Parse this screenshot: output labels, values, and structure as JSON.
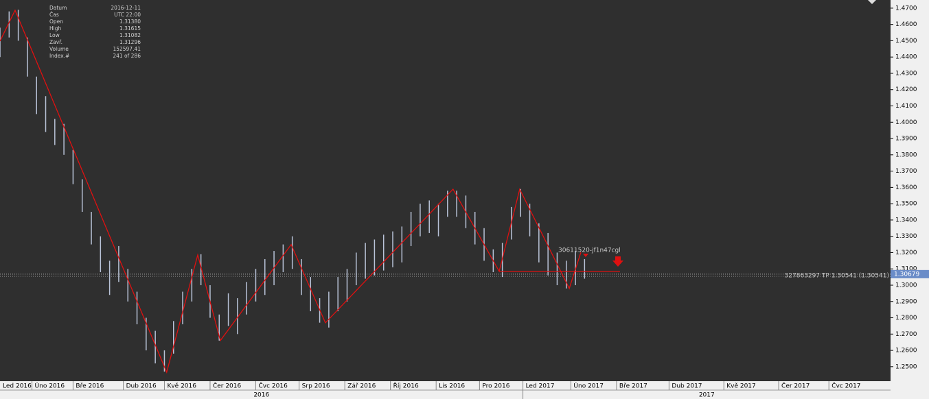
{
  "chart_data": {
    "type": "ohlc",
    "info": [
      [
        "Datum",
        "2016-12-11"
      ],
      [
        "Čas",
        "UTC 22:00"
      ],
      [
        "Open",
        "1.31380"
      ],
      [
        "High",
        "1.31615"
      ],
      [
        "Low",
        "1.31082"
      ],
      [
        "Zavř.",
        "1.31296"
      ],
      [
        "Volume",
        "152597.41"
      ],
      [
        "Index.#",
        "241 of 286"
      ]
    ],
    "xlim": [
      0,
      390
    ],
    "ylim": [
      1.2411,
      1.475
    ],
    "yticks": [
      {
        "value": 1.47,
        "label": "1.4700"
      },
      {
        "value": 1.46,
        "label": "1.4600"
      },
      {
        "value": 1.45,
        "label": "1.4500"
      },
      {
        "value": 1.44,
        "label": "1.4400"
      },
      {
        "value": 1.43,
        "label": "1.4300"
      },
      {
        "value": 1.42,
        "label": "1.4200"
      },
      {
        "value": 1.41,
        "label": "1.4100"
      },
      {
        "value": 1.4,
        "label": "1.4000"
      },
      {
        "value": 1.39,
        "label": "1.3900"
      },
      {
        "value": 1.38,
        "label": "1.3800"
      },
      {
        "value": 1.37,
        "label": "1.3700"
      },
      {
        "value": 1.36,
        "label": "1.3600"
      },
      {
        "value": 1.35,
        "label": "1.3500"
      },
      {
        "value": 1.34,
        "label": "1.3400"
      },
      {
        "value": 1.33,
        "label": "1.3300"
      },
      {
        "value": 1.32,
        "label": "1.3200"
      },
      {
        "value": 1.31,
        "label": "1.3100"
      },
      {
        "value": 1.3,
        "label": "1.3000"
      },
      {
        "value": 1.29,
        "label": "1.2900"
      },
      {
        "value": 1.28,
        "label": "1.2800"
      },
      {
        "value": 1.27,
        "label": "1.2700"
      },
      {
        "value": 1.26,
        "label": "1.2600"
      },
      {
        "value": 1.25,
        "label": "1.2500"
      }
    ],
    "xticks": [
      {
        "value": 0,
        "label": "Led 2016"
      },
      {
        "value": 14,
        "label": "Úno 2016"
      },
      {
        "value": 32,
        "label": "Bře 2016"
      },
      {
        "value": 54,
        "label": "Dub 2016"
      },
      {
        "value": 72,
        "label": "Kvě 2016"
      },
      {
        "value": 92,
        "label": "Čer 2016"
      },
      {
        "value": 112,
        "label": "Čvc 2016"
      },
      {
        "value": 131,
        "label": "Srp 2016"
      },
      {
        "value": 151,
        "label": "Zář 2016"
      },
      {
        "value": 171,
        "label": "Říj 2016"
      },
      {
        "value": 191,
        "label": "Lis 2016"
      },
      {
        "value": 210,
        "label": "Pro 2016"
      },
      {
        "value": 229,
        "label": "Led 2017"
      },
      {
        "value": 250,
        "label": "Úno 2017"
      },
      {
        "value": 270,
        "label": "Bře 2017"
      },
      {
        "value": 293,
        "label": "Dub 2017"
      },
      {
        "value": 317,
        "label": "Kvě 2017"
      },
      {
        "value": 341,
        "label": "Čer 2017"
      },
      {
        "value": 363,
        "label": "Čvc 2017"
      }
    ],
    "years": [
      {
        "value": 0,
        "label": "2016"
      },
      {
        "value": 229,
        "label": "2017"
      }
    ],
    "bar_color": "#b9c3d8",
    "x": [
      0,
      4,
      8,
      12,
      16,
      20,
      24,
      28,
      32,
      36,
      40,
      44,
      48,
      52,
      56,
      60,
      64,
      68,
      72,
      76,
      80,
      84,
      88,
      92,
      96,
      100,
      104,
      108,
      112,
      116,
      120,
      124,
      128,
      132,
      136,
      140,
      144,
      148,
      152,
      156,
      160,
      164,
      168,
      172,
      176,
      180,
      184,
      188,
      192,
      196,
      200,
      204,
      208,
      212,
      216,
      220,
      224,
      228,
      232,
      236,
      240,
      244,
      248,
      252,
      256
    ],
    "high": [
      1.458,
      1.468,
      1.469,
      1.452,
      1.428,
      1.416,
      1.402,
      1.399,
      1.383,
      1.365,
      1.345,
      1.33,
      1.315,
      1.324,
      1.31,
      1.296,
      1.28,
      1.272,
      1.26,
      1.278,
      1.296,
      1.31,
      1.319,
      1.3,
      1.282,
      1.295,
      1.292,
      1.302,
      1.31,
      1.316,
      1.321,
      1.325,
      1.33,
      1.316,
      1.305,
      1.292,
      1.296,
      1.305,
      1.31,
      1.32,
      1.326,
      1.328,
      1.331,
      1.333,
      1.336,
      1.345,
      1.35,
      1.352,
      1.35,
      1.358,
      1.358,
      1.355,
      1.345,
      1.335,
      1.322,
      1.326,
      1.348,
      1.359,
      1.35,
      1.338,
      1.332,
      1.32,
      1.315,
      1.321,
      1.316
    ],
    "low": [
      1.44,
      1.452,
      1.45,
      1.428,
      1.405,
      1.394,
      1.386,
      1.38,
      1.362,
      1.345,
      1.325,
      1.308,
      1.294,
      1.302,
      1.29,
      1.276,
      1.26,
      1.252,
      1.247,
      1.258,
      1.276,
      1.29,
      1.3,
      1.28,
      1.266,
      1.275,
      1.27,
      1.282,
      1.29,
      1.294,
      1.3,
      1.308,
      1.31,
      1.294,
      1.284,
      1.277,
      1.274,
      1.284,
      1.29,
      1.3,
      1.304,
      1.306,
      1.309,
      1.311,
      1.314,
      1.324,
      1.33,
      1.332,
      1.33,
      1.342,
      1.342,
      1.335,
      1.325,
      1.315,
      1.308,
      1.305,
      1.328,
      1.342,
      1.33,
      1.314,
      1.306,
      1.3,
      1.298,
      1.3,
      1.304
    ],
    "zigzag": {
      "color": "#e01010",
      "x": [
        0,
        6.6,
        73,
        86.6,
        96.5,
        127.5,
        142.5,
        198.4,
        218.6,
        227.6,
        249.3,
        254.4
      ],
      "y": [
        1.4498,
        1.4687,
        1.2466,
        1.3186,
        1.266,
        1.3249,
        1.2769,
        1.3589,
        1.3085,
        1.3589,
        1.298,
        1.3202
      ]
    },
    "level": {
      "value": 1.3085,
      "x": [
        218.6,
        271.5
      ]
    },
    "current_price": 1.30679,
    "order": {
      "value": 1.30541,
      "label": "327863297 TP 1.30541 (1.30541)",
      "tag": "30611520-jf1n47cgl"
    }
  }
}
